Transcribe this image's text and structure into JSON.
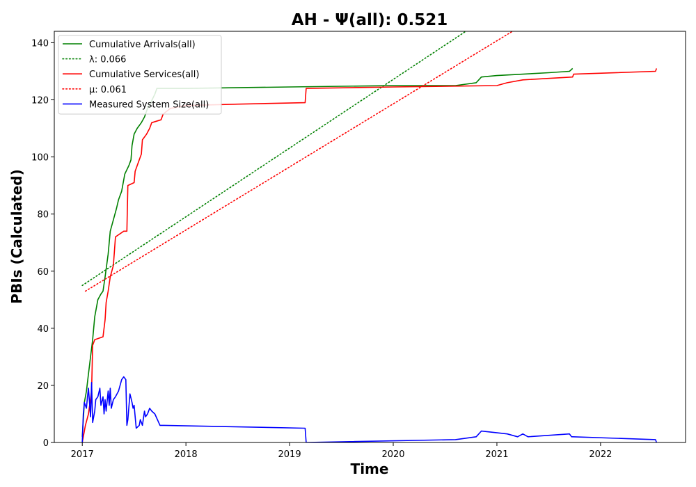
{
  "chart_data": {
    "type": "line",
    "title": "AH -  Ψ(all): 0.521",
    "xlabel": "Time",
    "ylabel": "PBIs (Calculated)",
    "xlim": [
      2016.73,
      2022.82
    ],
    "ylim": [
      0,
      144
    ],
    "x_ticks": [
      2017,
      2018,
      2019,
      2020,
      2021,
      2022
    ],
    "x_tick_labels": [
      "2017",
      "2018",
      "2019",
      "2020",
      "2021",
      "2022"
    ],
    "y_ticks": [
      0,
      20,
      40,
      60,
      80,
      100,
      120,
      140
    ],
    "y_tick_labels": [
      "0",
      "20",
      "40",
      "60",
      "80",
      "100",
      "120",
      "140"
    ],
    "grid": false,
    "legend_position": "top-left",
    "series": [
      {
        "name": "Cumulative Arrivals(all)",
        "color": "#008000",
        "style": "solid",
        "x": [
          2017.0,
          2017.02,
          2017.04,
          2017.06,
          2017.08,
          2017.1,
          2017.12,
          2017.15,
          2017.18,
          2017.2,
          2017.22,
          2017.25,
          2017.27,
          2017.3,
          2017.33,
          2017.35,
          2017.38,
          2017.41,
          2017.45,
          2017.47,
          2017.48,
          2017.5,
          2017.53,
          2017.57,
          2017.6,
          2017.63,
          2017.66,
          2017.7,
          2017.72,
          2017.8,
          2018.0,
          2019.0,
          2020.0,
          2020.6,
          2020.8,
          2020.85,
          2021.0,
          2021.5,
          2021.7,
          2021.73
        ],
        "y": [
          2,
          14,
          18,
          24,
          30,
          36,
          44,
          50,
          52,
          53,
          58,
          66,
          74,
          78,
          82,
          85,
          88,
          94,
          97,
          99,
          104,
          108,
          110,
          112,
          114,
          117,
          119,
          122,
          124,
          124,
          124,
          124.5,
          125,
          125,
          126,
          128,
          128.5,
          129.5,
          130,
          131
        ]
      },
      {
        "name": "λ: 0.066",
        "color": "#008000",
        "style": "dotted",
        "x": [
          2017.0,
          2020.7
        ],
        "y": [
          55,
          144
        ]
      },
      {
        "name": "Cumulative Services(all)",
        "color": "#ff0000",
        "style": "solid",
        "x": [
          2017.0,
          2017.01,
          2017.03,
          2017.06,
          2017.09,
          2017.1,
          2017.12,
          2017.2,
          2017.22,
          2017.23,
          2017.25,
          2017.27,
          2017.3,
          2017.32,
          2017.4,
          2017.43,
          2017.44,
          2017.5,
          2017.51,
          2017.55,
          2017.57,
          2017.58,
          2017.62,
          2017.65,
          2017.67,
          2017.76,
          2017.78,
          2017.85,
          2018.0,
          2018.5,
          2019.15,
          2019.16,
          2020.0,
          2021.0,
          2021.1,
          2021.25,
          2021.73,
          2021.74,
          2022.53,
          2022.54
        ],
        "y": [
          0,
          2,
          6,
          10,
          18,
          34,
          36,
          37,
          43,
          49,
          53,
          58,
          62,
          72,
          74,
          74,
          90,
          91,
          95,
          99,
          101,
          106,
          108,
          110,
          112,
          113,
          115,
          117,
          118,
          118.5,
          119,
          124,
          124.5,
          125,
          126,
          127,
          128,
          129,
          130,
          131
        ]
      },
      {
        "name": "μ: 0.061",
        "color": "#ff0000",
        "style": "dotted",
        "x": [
          2017.03,
          2021.15
        ],
        "y": [
          53,
          144
        ]
      },
      {
        "name": "Measured System Size(all)",
        "color": "#0000ff",
        "style": "solid",
        "x": [
          2017.0,
          2017.01,
          2017.02,
          2017.04,
          2017.05,
          2017.06,
          2017.08,
          2017.09,
          2017.1,
          2017.12,
          2017.13,
          2017.15,
          2017.17,
          2017.18,
          2017.2,
          2017.21,
          2017.22,
          2017.23,
          2017.25,
          2017.26,
          2017.27,
          2017.28,
          2017.3,
          2017.32,
          2017.35,
          2017.38,
          2017.4,
          2017.42,
          2017.43,
          2017.44,
          2017.46,
          2017.48,
          2017.49,
          2017.5,
          2017.52,
          2017.55,
          2017.56,
          2017.58,
          2017.6,
          2017.61,
          2017.63,
          2017.65,
          2017.67,
          2017.7,
          2017.75,
          2017.78,
          2017.79,
          2019.15,
          2019.16,
          2020.6,
          2020.8,
          2020.85,
          2021.1,
          2021.2,
          2021.25,
          2021.3,
          2021.7,
          2021.72,
          2021.73,
          2022.53,
          2022.54
        ],
        "y": [
          0,
          10,
          14,
          12,
          16,
          19,
          9,
          21,
          7,
          11,
          15,
          16,
          19,
          13,
          16,
          10,
          15,
          11,
          18,
          13,
          19,
          12,
          15,
          16,
          18,
          22,
          23,
          22,
          6,
          8,
          17,
          14,
          12,
          13,
          5,
          6,
          8,
          6,
          11,
          9,
          10,
          12,
          11,
          10,
          6,
          6,
          6,
          5,
          0,
          1,
          2,
          4,
          3,
          2,
          3,
          2,
          3,
          2,
          2,
          1,
          0
        ]
      }
    ]
  }
}
